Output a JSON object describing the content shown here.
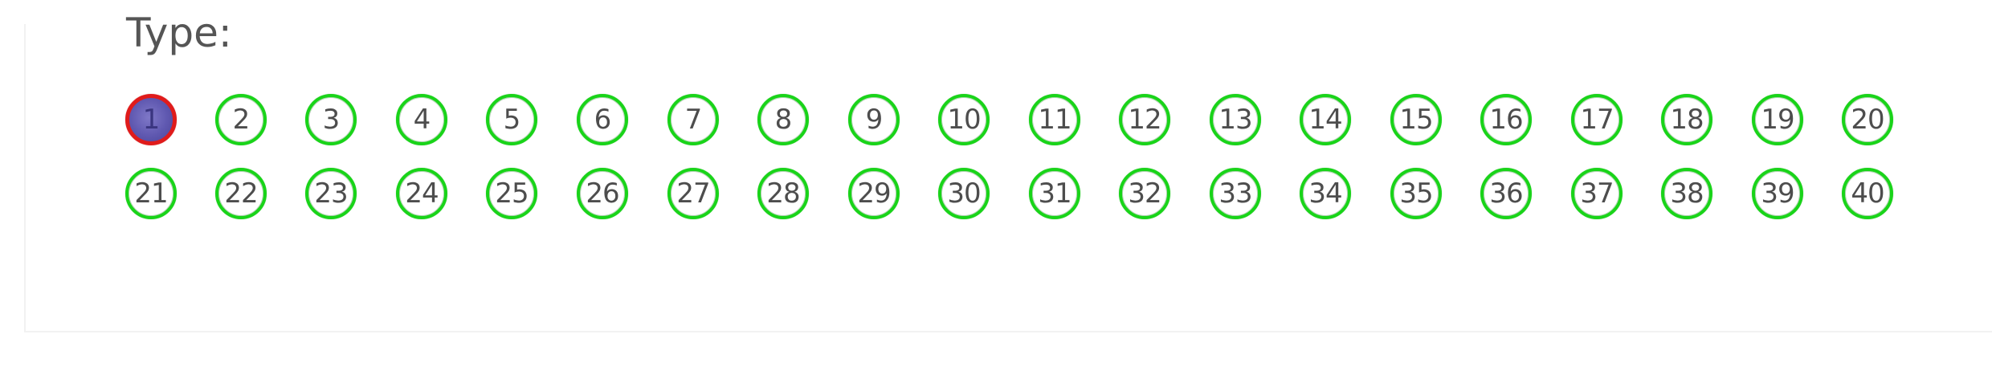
{
  "type_label": "Type:",
  "selected_value": "1",
  "colors": {
    "ring": "#19d419",
    "selected_ring": "#e01b1b",
    "selected_fill": "#5f58b0",
    "text": "#4d4d4d"
  },
  "rows": [
    [
      "1",
      "2",
      "3",
      "4",
      "5",
      "6",
      "7",
      "8",
      "9",
      "10",
      "11",
      "12",
      "13",
      "14",
      "15",
      "16",
      "17",
      "18",
      "19",
      "20"
    ],
    [
      "21",
      "22",
      "23",
      "24",
      "25",
      "26",
      "27",
      "28",
      "29",
      "30",
      "31",
      "32",
      "33",
      "34",
      "35",
      "36",
      "37",
      "38",
      "39",
      "40"
    ]
  ]
}
